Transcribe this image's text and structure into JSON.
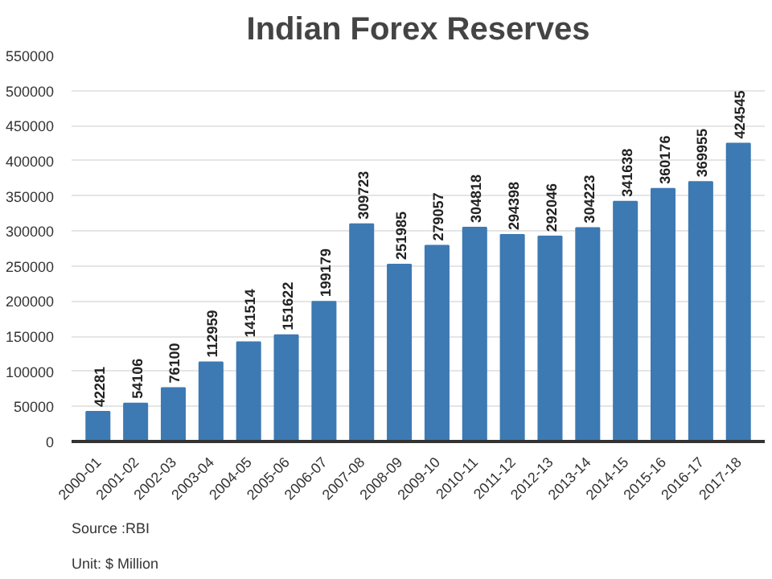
{
  "chart_data": {
    "type": "bar",
    "title": "Indian Forex Reserves",
    "categories": [
      "2000-01",
      "2001-02",
      "2002-03",
      "2003-04",
      "2004-05",
      "2005-06",
      "2006-07",
      "2007-08",
      "2008-09",
      "2009-10",
      "2010-11",
      "2011-12",
      "2012-13",
      "2013-14",
      "2014-15",
      "2015-16",
      "2016-17",
      "2017-18"
    ],
    "values": [
      42281,
      54106,
      76100,
      112959,
      141514,
      151622,
      199179,
      309723,
      251985,
      279057,
      304818,
      294398,
      292046,
      304223,
      341638,
      360176,
      369955,
      424545
    ],
    "color": "#3d7ab3",
    "ylim": [
      0,
      550000
    ],
    "yticks": [
      0,
      50000,
      100000,
      150000,
      200000,
      250000,
      300000,
      350000,
      400000,
      450000,
      500000,
      550000
    ],
    "grid": "y",
    "data_labels": true,
    "annotations": [
      "Source :RBI",
      "Unit: $ Million"
    ]
  }
}
